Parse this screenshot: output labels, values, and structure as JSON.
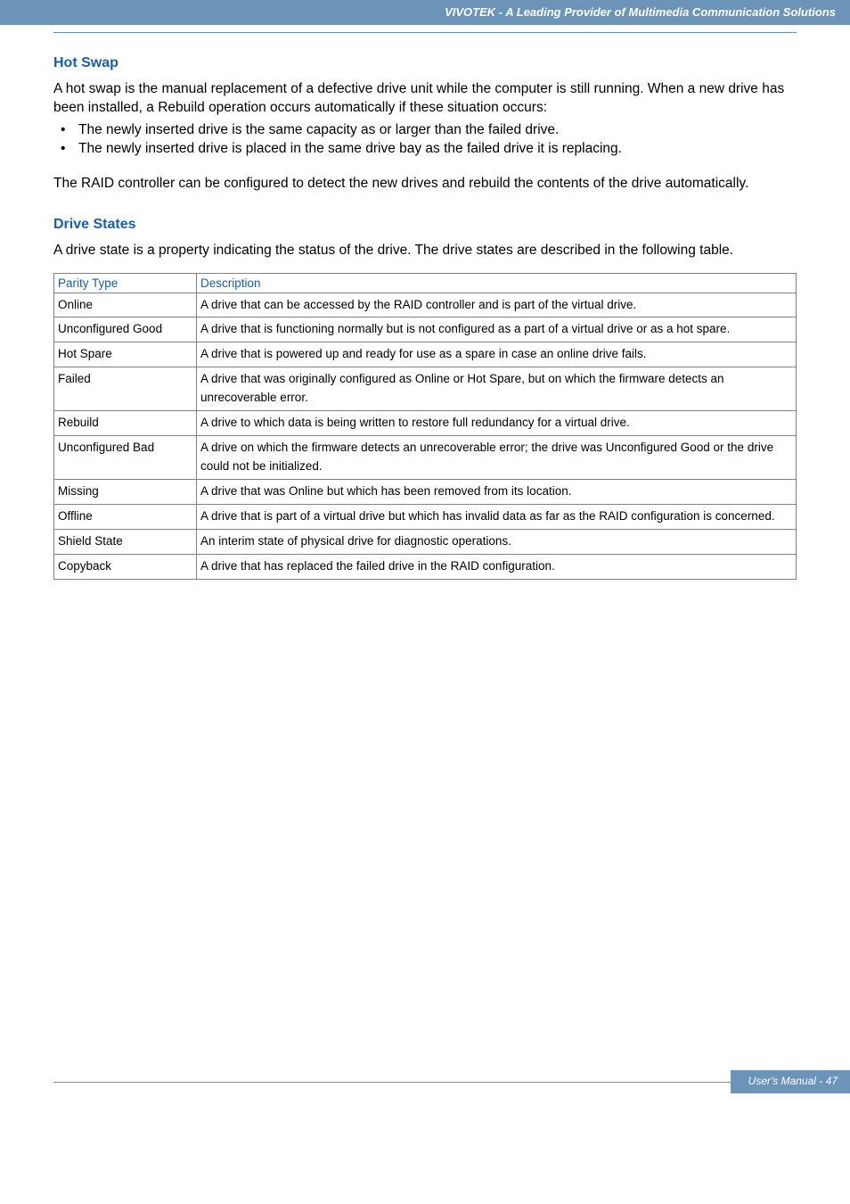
{
  "colors": {
    "header_bg": "#6b94b8",
    "header_text": "#ffffff",
    "heading_blue": "#1a5ea8",
    "body_text": "#000000",
    "table_border": "#808080",
    "table_header_text": "#1a5ea8"
  },
  "header": {
    "brand_text": "VIVOTEK - A Leading Provider of Multimedia Communication Solutions"
  },
  "sections": {
    "hotswap": {
      "heading": "Hot Swap",
      "para1": "A hot swap is the manual replacement of a defective drive unit while the computer is still running. When a new drive has been installed, a Rebuild operation occurs automatically if these situation occurs:",
      "bullets": [
        "The newly inserted drive is the same capacity as or larger than the failed drive.",
        "The newly inserted drive is placed in the same drive bay as the failed drive it is replacing."
      ],
      "para2": "The RAID controller can be configured to detect the new drives and rebuild the contents of the drive automatically."
    },
    "drivestates": {
      "heading": "Drive States",
      "intro": "A drive state is a property indicating the status of the drive. The drive states are described in the following table.",
      "table": {
        "columns": [
          "Parity Type",
          "Description"
        ],
        "rows": [
          [
            "Online",
            "A drive that can be accessed by the RAID controller and is part of the virtual drive."
          ],
          [
            "Unconfigured Good",
            "A drive that is functioning normally but is not configured as a part of a virtual drive or as a hot spare."
          ],
          [
            "Hot Spare",
            "A drive that is powered up and ready for use as a spare in case an online drive fails."
          ],
          [
            "Failed",
            "A drive that was originally configured as Online or Hot Spare, but on which the firmware detects an unrecoverable error."
          ],
          [
            "Rebuild",
            "A drive to which data is being written to restore full redundancy for a virtual drive."
          ],
          [
            "Unconfigured Bad",
            "A drive on which the firmware detects an unrecoverable error; the drive was Unconfigured Good or the drive could not be initialized."
          ],
          [
            "Missing",
            "A drive that was Online but which has been removed from its location."
          ],
          [
            "Offline",
            "A drive that is part of a virtual drive but which has invalid data as far as the RAID configuration is concerned."
          ],
          [
            "Shield State",
            "An interim state of physical drive for diagnostic operations."
          ],
          [
            "Copyback",
            "A drive that has replaced the failed drive in the RAID configuration."
          ]
        ]
      }
    }
  },
  "footer": {
    "text": "User's Manual - 47"
  }
}
